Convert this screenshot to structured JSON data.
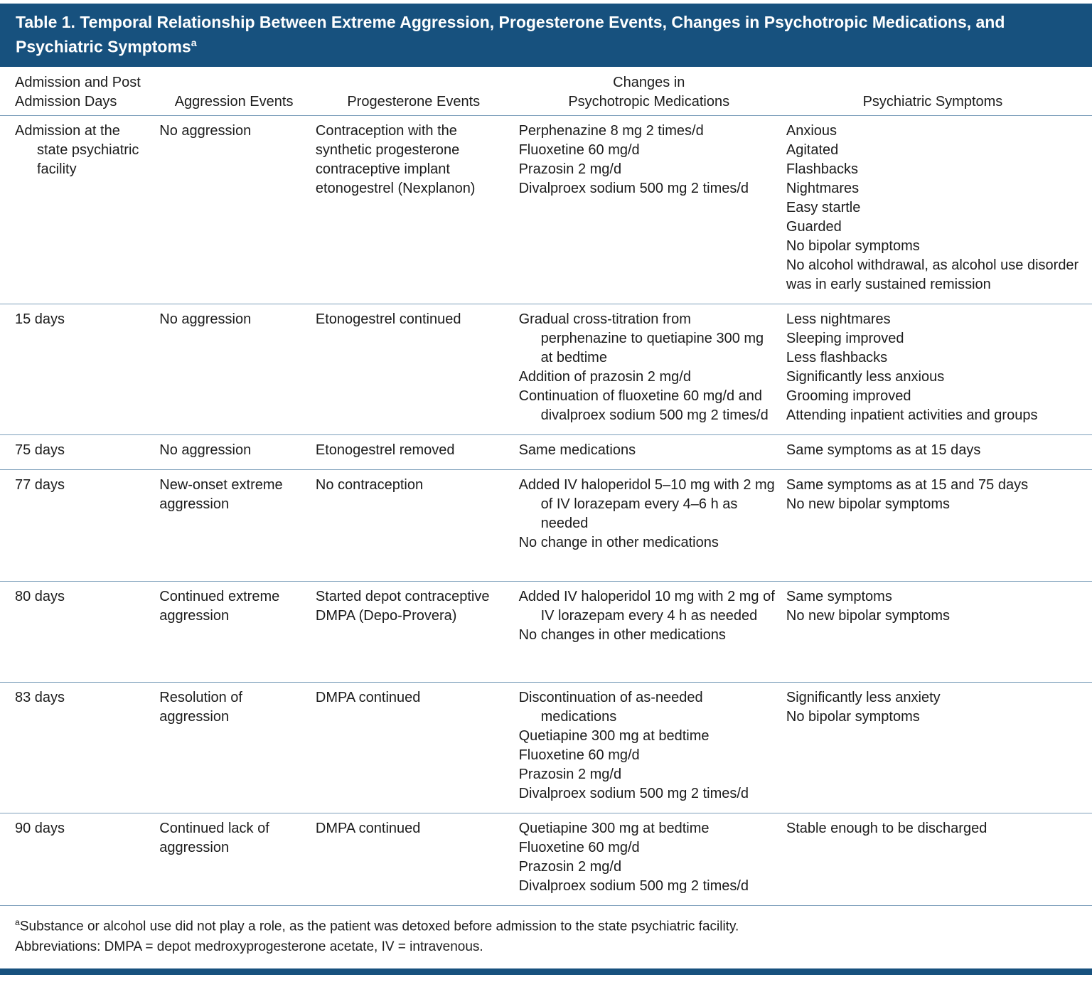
{
  "colors": {
    "title_bar_bg": "#17517e",
    "title_text": "#ffffff",
    "rule": "#7d9fbb",
    "body_text": "#1c1c1c",
    "bottom_bar": "#17517e"
  },
  "table": {
    "title": "Table 1. Temporal Relationship Between Extreme Aggression, Progesterone Events, Changes in Psychotropic Medications, and Psychiatric Symptoms",
    "title_marker": "a",
    "columns": [
      {
        "key": "days",
        "label": "Admission and Post\nAdmission Days"
      },
      {
        "key": "aggression",
        "label": "Aggression Events"
      },
      {
        "key": "progesterone",
        "label": "Progesterone Events"
      },
      {
        "key": "medications",
        "label": "Changes in\nPsychotropic Medications"
      },
      {
        "key": "symptoms",
        "label": "Psychiatric Symptoms"
      }
    ],
    "rows": [
      {
        "days": [
          "Admission at the state psychiatric facility"
        ],
        "aggression": [
          "No aggression"
        ],
        "progesterone": [
          "Contraception with the synthetic progesterone contraceptive implant etonogestrel (Nexplanon)"
        ],
        "medications": [
          "Perphenazine 8 mg 2 times/d",
          "Fluoxetine 60 mg/d",
          "Prazosin 2 mg/d",
          "Divalproex sodium 500 mg 2 times/d"
        ],
        "symptoms": [
          "Anxious",
          "Agitated",
          "Flashbacks",
          "Nightmares",
          "Easy startle",
          "Guarded",
          "No bipolar symptoms",
          "No alcohol withdrawal, as alcohol use disorder was in early sustained remission"
        ]
      },
      {
        "days": [
          "15 days"
        ],
        "aggression": [
          "No aggression"
        ],
        "progesterone": [
          "Etonogestrel continued"
        ],
        "medications": [
          "Gradual cross-titration from perphenazine to quetiapine 300 mg at bedtime",
          "Addition of prazosin 2 mg/d",
          "Continuation of fluoxetine 60 mg/d and divalproex sodium 500 mg 2 times/d"
        ],
        "symptoms": [
          "Less nightmares",
          "Sleeping improved",
          "Less flashbacks",
          "Significantly less anxious",
          "Grooming improved",
          "Attending inpatient activities and groups"
        ]
      },
      {
        "days": [
          "75 days"
        ],
        "aggression": [
          "No aggression"
        ],
        "progesterone": [
          "Etonogestrel removed"
        ],
        "medications": [
          "Same medications"
        ],
        "symptoms": [
          "Same symptoms as at 15 days"
        ]
      },
      {
        "days": [
          "77 days"
        ],
        "aggression": [
          "New-onset extreme aggression"
        ],
        "progesterone": [
          "No contraception"
        ],
        "medications": [
          "Added IV haloperidol 5–10 mg with 2 mg of IV lorazepam every 4–6 h as needed",
          "No change in other medications"
        ],
        "symptoms": [
          "Same symptoms as at 15 and 75 days",
          "No new bipolar symptoms"
        ]
      },
      {
        "days": [
          "80 days"
        ],
        "aggression": [
          "Continued extreme aggression"
        ],
        "progesterone": [
          "Started depot contraceptive DMPA (Depo-Provera)"
        ],
        "medications": [
          "Added IV haloperidol 10 mg with 2 mg of IV lorazepam every 4 h as needed",
          "No changes in other medications"
        ],
        "symptoms": [
          "Same symptoms",
          "No new bipolar symptoms"
        ]
      },
      {
        "days": [
          "83 days"
        ],
        "aggression": [
          "Resolution of aggression"
        ],
        "progesterone": [
          "DMPA continued"
        ],
        "medications": [
          "Discontinuation of as-needed medications",
          "Quetiapine 300 mg at bedtime",
          "Fluoxetine 60 mg/d",
          "Prazosin 2 mg/d",
          "Divalproex sodium 500 mg 2 times/d"
        ],
        "symptoms": [
          "Significantly less anxiety",
          "No bipolar symptoms"
        ]
      },
      {
        "days": [
          "90 days"
        ],
        "aggression": [
          "Continued lack of aggression"
        ],
        "progesterone": [
          "DMPA continued"
        ],
        "medications": [
          "Quetiapine 300 mg at bedtime",
          "Fluoxetine 60 mg/d",
          "Prazosin 2 mg/d",
          "Divalproex sodium 500 mg 2 times/d"
        ],
        "symptoms": [
          "Stable enough to be discharged"
        ]
      }
    ]
  },
  "footnotes": [
    {
      "marker": "a",
      "text": "Substance or alcohol use did not play a role, as the patient was detoxed before admission to the state psychiatric facility."
    },
    {
      "marker": "",
      "text": "Abbreviations: DMPA = depot medroxyprogesterone acetate, IV = intravenous."
    }
  ]
}
